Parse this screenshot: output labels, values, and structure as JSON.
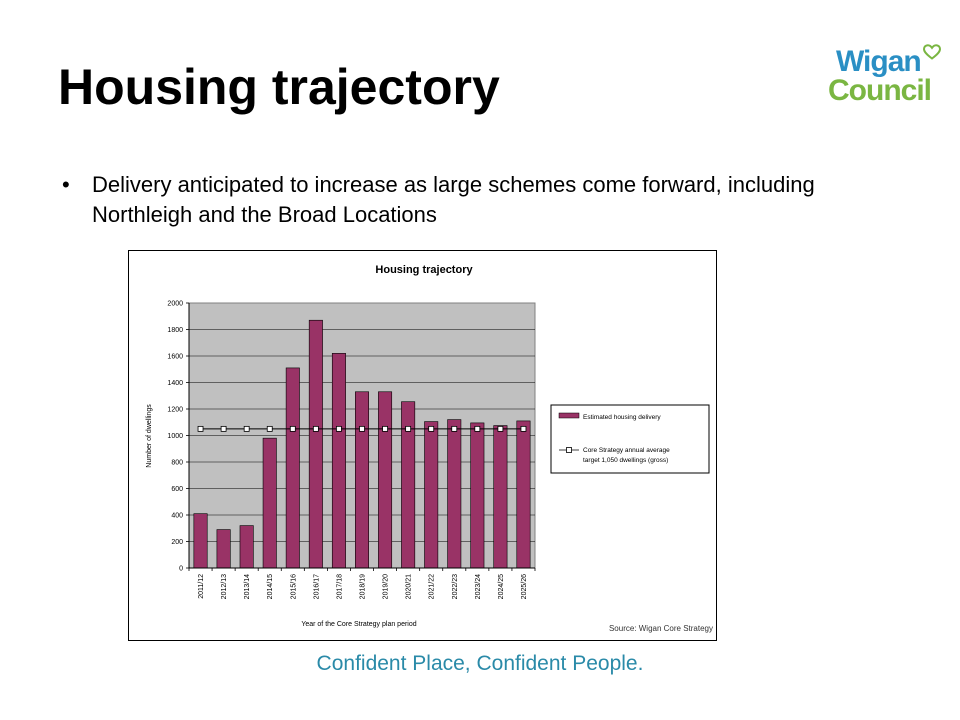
{
  "slide": {
    "title": "Housing trajectory",
    "bullet_marker": "•",
    "bullet": "Delivery anticipated to increase as large schemes come forward, including Northleigh and the Broad Locations",
    "tagline": "Confident Place, Confident People."
  },
  "logo": {
    "line1": "Wigan",
    "line2": "Council",
    "icon": "heart-icon",
    "colors": {
      "line1": "#2a8fc4",
      "line2": "#7ab642",
      "heart": "#7ab642"
    }
  },
  "chart_data": {
    "type": "bar",
    "title": "Housing trajectory",
    "xlabel": "Year of the Core Strategy plan period",
    "ylabel": "Number of dwellings",
    "ylim": [
      0,
      2000
    ],
    "yticks": [
      0,
      200,
      400,
      600,
      800,
      1000,
      1200,
      1400,
      1600,
      1800,
      2000
    ],
    "grid": true,
    "legend_position": "right",
    "source": "Source: Wigan Core Strategy",
    "categories": [
      "2011/12",
      "2012/13",
      "2013/14",
      "2014/15",
      "2015/16",
      "2016/17",
      "2017/18",
      "2018/19",
      "2019/20",
      "2020/21",
      "2021/22",
      "2022/23",
      "2023/24",
      "2024/25",
      "2025/26"
    ],
    "series": [
      {
        "name": "Estimated housing delivery",
        "type": "bar",
        "color": "#993366",
        "values": [
          410,
          290,
          320,
          980,
          1510,
          1870,
          1620,
          1330,
          1330,
          1255,
          1105,
          1120,
          1095,
          1075,
          1110
        ]
      },
      {
        "name": "Core Strategy annual average target 1,050 dwellings (gross)",
        "legend_lines": [
          "Core Strategy annual average",
          "target 1,050 dwellings (gross)"
        ],
        "type": "line",
        "color": "#000000",
        "values": [
          1050,
          1050,
          1050,
          1050,
          1050,
          1050,
          1050,
          1050,
          1050,
          1050,
          1050,
          1050,
          1050,
          1050,
          1050
        ]
      }
    ],
    "colors": {
      "plot_background": "#c0c0c0"
    }
  }
}
